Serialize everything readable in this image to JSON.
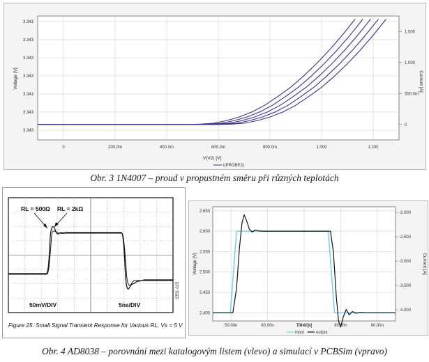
{
  "figure3": {
    "caption": "Obr. 3  1N4007 – proud v propustném směru při různých teplotách",
    "chart_data": {
      "type": "line",
      "xlabel": "V(V2) [V]",
      "ylabel_left": "Voltage [V]",
      "ylabel_right": "Current [A]",
      "legend": "I(PROBE2)",
      "x_ticks": [
        "0",
        "200.0m",
        "400.0m",
        "600.0m",
        "800.0m",
        "1.000",
        "1.200"
      ],
      "y_left_ticks": [
        "3.343",
        "3.343",
        "3.343",
        "3.343",
        "3.343",
        "3.343",
        "3.343"
      ],
      "y_right_ticks": [
        "1.500",
        "1.000",
        "500.0m",
        "0"
      ],
      "xlim": [
        -0.1,
        1.3
      ],
      "ylim_right": [
        -0.25,
        1.75
      ],
      "series": [
        {
          "x": [
            -0.1,
            0.6,
            0.65,
            0.7,
            0.75,
            0.8,
            0.85,
            0.9,
            0.95,
            1.0,
            1.05,
            1.1,
            1.15,
            1.2,
            1.25
          ],
          "y": [
            0.0,
            0.0,
            0.005,
            0.02,
            0.06,
            0.12,
            0.2,
            0.31,
            0.45,
            0.6,
            0.78,
            0.98,
            1.2,
            1.44,
            1.7
          ]
        },
        {
          "x": [
            -0.1,
            0.57,
            0.62,
            0.67,
            0.72,
            0.77,
            0.82,
            0.87,
            0.92,
            0.97,
            1.02,
            1.07,
            1.12,
            1.17,
            1.22
          ],
          "y": [
            0.0,
            0.0,
            0.005,
            0.02,
            0.06,
            0.12,
            0.2,
            0.31,
            0.45,
            0.6,
            0.78,
            0.98,
            1.2,
            1.44,
            1.7
          ]
        },
        {
          "x": [
            -0.1,
            0.54,
            0.59,
            0.64,
            0.69,
            0.74,
            0.79,
            0.84,
            0.89,
            0.94,
            0.99,
            1.04,
            1.09,
            1.14,
            1.19
          ],
          "y": [
            0.0,
            0.0,
            0.005,
            0.02,
            0.06,
            0.12,
            0.2,
            0.31,
            0.45,
            0.6,
            0.78,
            0.98,
            1.2,
            1.44,
            1.7
          ]
        },
        {
          "x": [
            -0.1,
            0.51,
            0.56,
            0.61,
            0.66,
            0.71,
            0.76,
            0.81,
            0.86,
            0.91,
            0.96,
            1.01,
            1.06,
            1.11,
            1.16
          ],
          "y": [
            0.0,
            0.0,
            0.005,
            0.02,
            0.06,
            0.12,
            0.2,
            0.31,
            0.45,
            0.6,
            0.78,
            0.98,
            1.2,
            1.44,
            1.7
          ]
        },
        {
          "x": [
            -0.1,
            0.48,
            0.53,
            0.58,
            0.63,
            0.68,
            0.73,
            0.78,
            0.83,
            0.88,
            0.93,
            0.98,
            1.03,
            1.08,
            1.13
          ],
          "y": [
            0.0,
            0.0,
            0.005,
            0.02,
            0.06,
            0.12,
            0.2,
            0.31,
            0.45,
            0.6,
            0.78,
            0.98,
            1.2,
            1.44,
            1.7
          ]
        }
      ]
    }
  },
  "figure4": {
    "caption": "Obr. 4  AD8038 – porovnání mezi katalogovým listem (vlevo) a simulací v PCBSim (vpravo)",
    "datasheet": {
      "label_rl1": "RL = 500Ω",
      "label_rl2": "RL = 2kΩ",
      "vdiv": "50mV/DIV",
      "tdiv": "5ns/DIV",
      "side_code": "0351-025",
      "caption": "Figure 25. Small Signal Transient Response for Various RL, Vs = 5 V"
    },
    "simulation": {
      "chart_data": {
        "type": "line",
        "xlabel": "Time [s]",
        "ylabel_left": "Voltage [V]",
        "ylabel_right": "Current [A]",
        "legend": [
          "input",
          "output"
        ],
        "x_ticks": [
          "50.00n",
          "60.00n",
          "70.00n",
          "80.00n",
          "90.00n"
        ],
        "y_left_ticks": [
          "2.650",
          "2.600",
          "2.550",
          "2.500",
          "2.450",
          "2.400"
        ],
        "y_right_ticks": [
          "-2.000",
          "-2.500",
          "-3.000",
          "-3.500",
          "-4.000"
        ],
        "xlim": [
          45,
          95
        ],
        "ylim": [
          2.38,
          2.66
        ],
        "series": [
          {
            "name": "input",
            "color": "#7fd3e6",
            "x": [
              45,
              49.8,
              51.5,
              76.6,
              78.3,
              95
            ],
            "y": [
              2.4,
              2.4,
              2.6,
              2.6,
              2.4,
              2.4
            ]
          },
          {
            "name": "output",
            "color": "#111111",
            "x": [
              45,
              50.5,
              51.5,
              52.3,
              53.0,
              53.6,
              54.3,
              55.0,
              55.8,
              56.6,
              57.5,
              58.5,
              60,
              77.2,
              78.0,
              78.8,
              79.4,
              80.0,
              80.7,
              81.5,
              82.3,
              83.2,
              84.2,
              85.5,
              87,
              95
            ],
            "y": [
              2.4,
              2.4,
              2.46,
              2.56,
              2.62,
              2.64,
              2.625,
              2.605,
              2.598,
              2.603,
              2.601,
              2.6,
              2.6,
              2.6,
              2.55,
              2.44,
              2.38,
              2.365,
              2.39,
              2.408,
              2.395,
              2.403,
              2.399,
              2.401,
              2.4,
              2.4
            ]
          }
        ]
      }
    }
  }
}
